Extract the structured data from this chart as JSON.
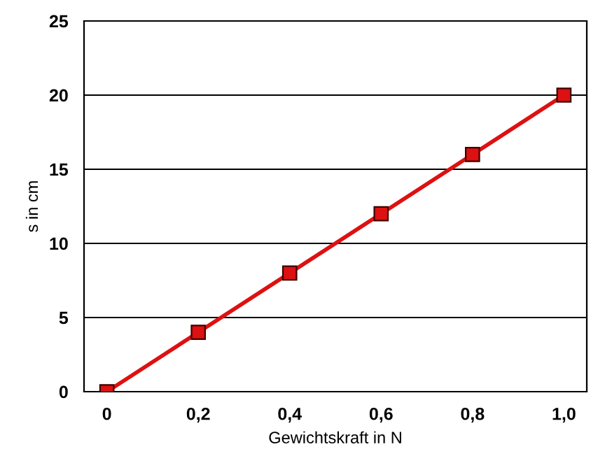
{
  "chart_data": {
    "type": "line",
    "xlabel": "Gewichtskraft in N",
    "ylabel": "s in cm",
    "x": [
      0,
      0.2,
      0.4,
      0.6,
      0.8,
      1.0
    ],
    "values": [
      0,
      4,
      8,
      12,
      16,
      20
    ],
    "color": "#dd1111",
    "marker": "square",
    "line_style": "solid",
    "xlim": [
      -0.05,
      1.05
    ],
    "xticks": [
      0,
      {
        "value": 0.2,
        "label": "0,2"
      },
      {
        "value": 0.4,
        "label": "0,4"
      },
      {
        "value": 0.6,
        "label": "0,6"
      },
      {
        "value": 0.8,
        "label": "0,8"
      },
      {
        "value": 1.0,
        "label": "1,0"
      }
    ],
    "ylim": [
      0,
      25
    ],
    "yticks": [
      0,
      5,
      10,
      15,
      20,
      25
    ],
    "grid": "y"
  }
}
